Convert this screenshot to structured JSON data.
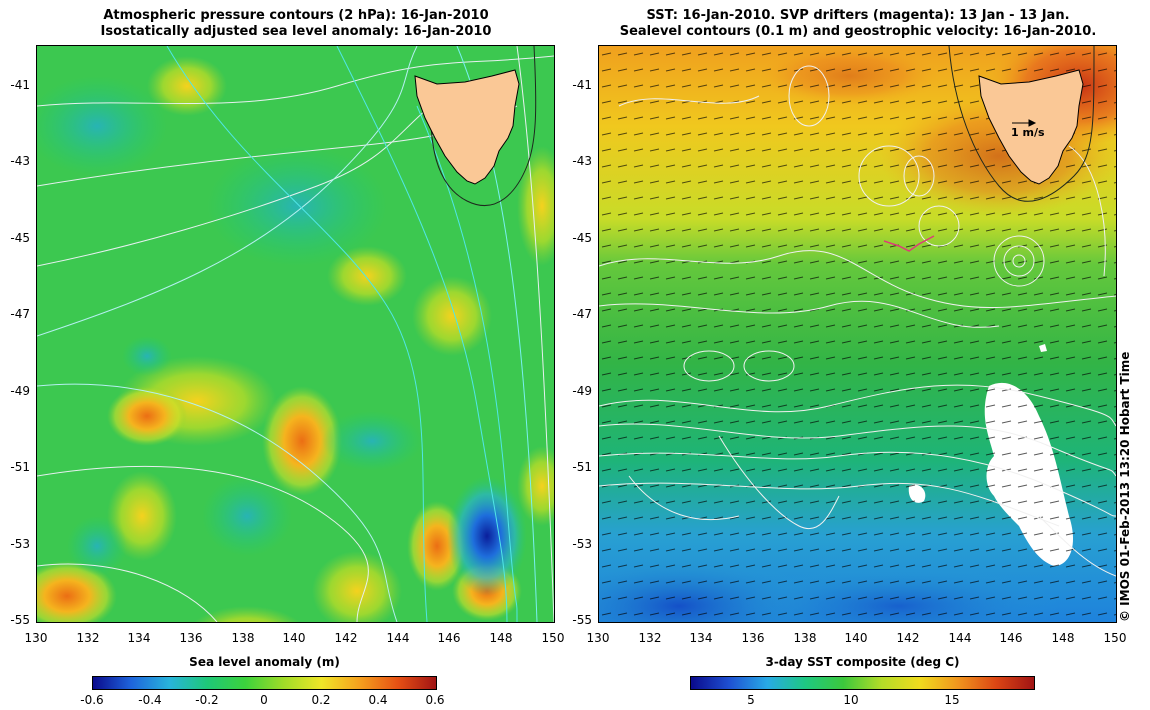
{
  "left_panel": {
    "title_line1": "Atmospheric pressure contours (2 hPa): 16-Jan-2010",
    "title_line2": "Isostatically adjusted sea level anomaly: 16-Jan-2010",
    "colorbar_label": "Sea level anomaly (m)",
    "colorbar_ticks": [
      "-0.6",
      "-0.4",
      "-0.2",
      "0",
      "0.2",
      "0.4",
      "0.6"
    ]
  },
  "right_panel": {
    "title_line1": "SST: 16-Jan-2010. SVP drifters (magenta): 13 Jan - 13 Jan.",
    "title_line2": "Sealevel contours (0.1 m) and geostrophic velocity: 16-Jan-2010.",
    "colorbar_label": "3-day SST composite (deg C)",
    "colorbar_ticks": [
      "5",
      "10",
      "15"
    ],
    "scale_arrow_label": "1 m/s"
  },
  "axes": {
    "y_ticks": [
      "-41",
      "-43",
      "-45",
      "-47",
      "-49",
      "-51",
      "-53",
      "-55"
    ],
    "x_ticks": [
      "130",
      "132",
      "134",
      "136",
      "138",
      "140",
      "142",
      "144",
      "146",
      "148",
      "150"
    ],
    "lon_range": [
      130,
      150
    ],
    "lat_range": [
      -40,
      -55
    ]
  },
  "credit": "© IMOS 01-Feb-2013 13:20 Hobart Time",
  "colors": {
    "land": "#fac896",
    "sla_scale": [
      "#0a0a8c",
      "#1e64dc",
      "#28b4dc",
      "#1ec878",
      "#3cd23c",
      "#a0dc28",
      "#f0e628",
      "#f5a01e",
      "#e65014",
      "#a01414"
    ],
    "sst_scale": [
      "#0a0a8c",
      "#1e50d2",
      "#28aae6",
      "#1ec882",
      "#3cc83c",
      "#b4dc28",
      "#f0dc1e",
      "#f0961e",
      "#dc4614",
      "#a01414"
    ]
  }
}
